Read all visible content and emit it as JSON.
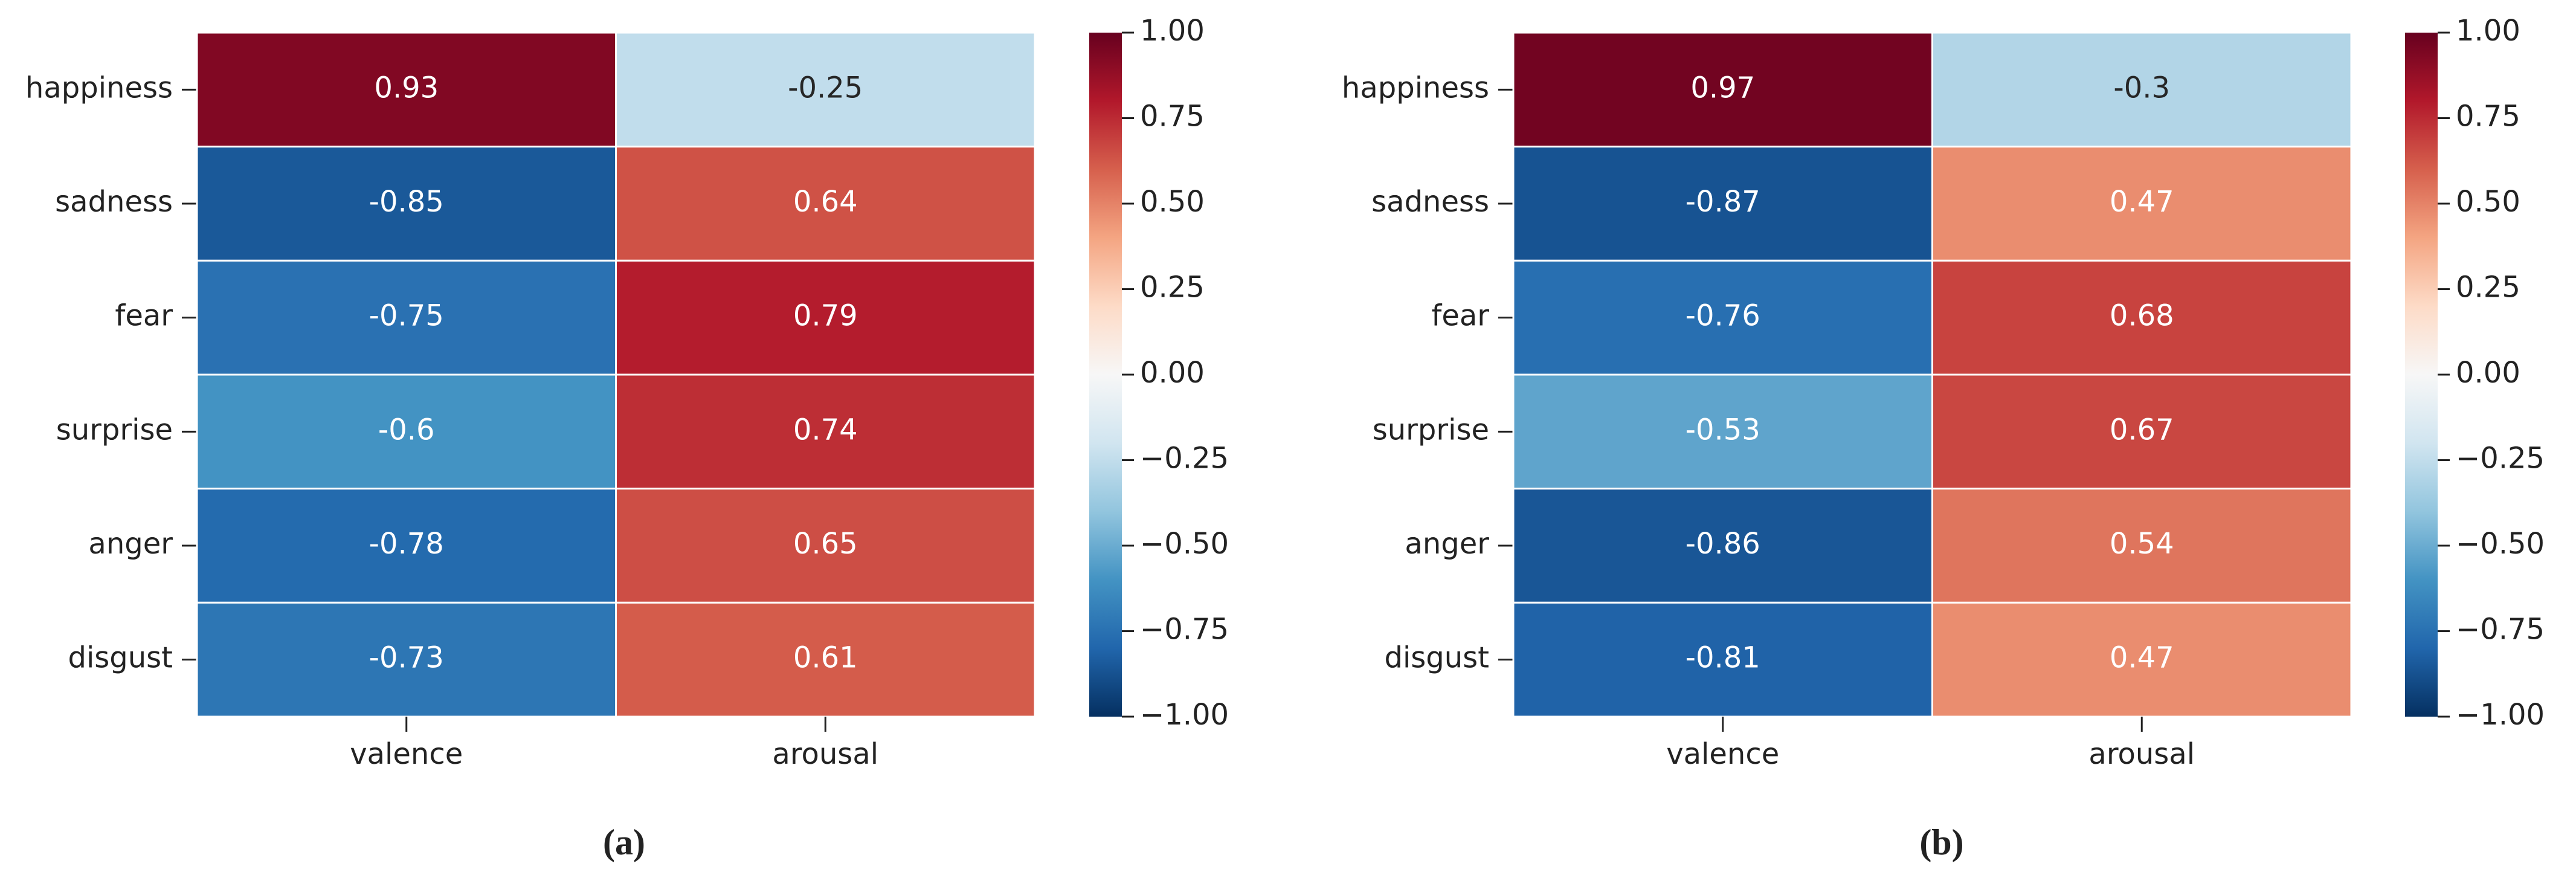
{
  "chart_data": [
    {
      "type": "heatmap",
      "caption": "(a)",
      "x_categories": [
        "valence",
        "arousal"
      ],
      "y_categories": [
        "happiness",
        "sadness",
        "fear",
        "surprise",
        "anger",
        "disgust"
      ],
      "values": [
        [
          0.93,
          -0.25
        ],
        [
          -0.85,
          0.64
        ],
        [
          -0.75,
          0.79
        ],
        [
          -0.6,
          0.74
        ],
        [
          -0.78,
          0.65
        ],
        [
          -0.73,
          0.61
        ]
      ],
      "colormap": "RdBu_r",
      "clim": [
        -1,
        1
      ],
      "cticks": [
        {
          "value": 1,
          "label": "1.00"
        },
        {
          "value": 0.75,
          "label": "0.75"
        },
        {
          "value": 0.5,
          "label": "0.50"
        },
        {
          "value": 0.25,
          "label": "0.25"
        },
        {
          "value": 0,
          "label": "0.00"
        },
        {
          "value": -0.25,
          "label": "−0.25"
        },
        {
          "value": -0.5,
          "label": "−0.50"
        },
        {
          "value": -0.75,
          "label": "−0.75"
        },
        {
          "value": -1,
          "label": "−1.00"
        }
      ]
    },
    {
      "type": "heatmap",
      "caption": "(b)",
      "x_categories": [
        "valence",
        "arousal"
      ],
      "y_categories": [
        "happiness",
        "sadness",
        "fear",
        "surprise",
        "anger",
        "disgust"
      ],
      "values": [
        [
          0.97,
          -0.3
        ],
        [
          -0.87,
          0.47
        ],
        [
          -0.76,
          0.68
        ],
        [
          -0.53,
          0.67
        ],
        [
          -0.86,
          0.54
        ],
        [
          -0.81,
          0.47
        ]
      ],
      "colormap": "RdBu_r",
      "clim": [
        -1,
        1
      ],
      "cticks": [
        {
          "value": 1,
          "label": "1.00"
        },
        {
          "value": 0.75,
          "label": "0.75"
        },
        {
          "value": 0.5,
          "label": "0.50"
        },
        {
          "value": 0.25,
          "label": "0.25"
        },
        {
          "value": 0,
          "label": "0.00"
        },
        {
          "value": -0.25,
          "label": "−0.25"
        },
        {
          "value": -0.5,
          "label": "−0.50"
        },
        {
          "value": -0.75,
          "label": "−0.75"
        },
        {
          "value": -1,
          "label": "−1.00"
        }
      ]
    }
  ]
}
